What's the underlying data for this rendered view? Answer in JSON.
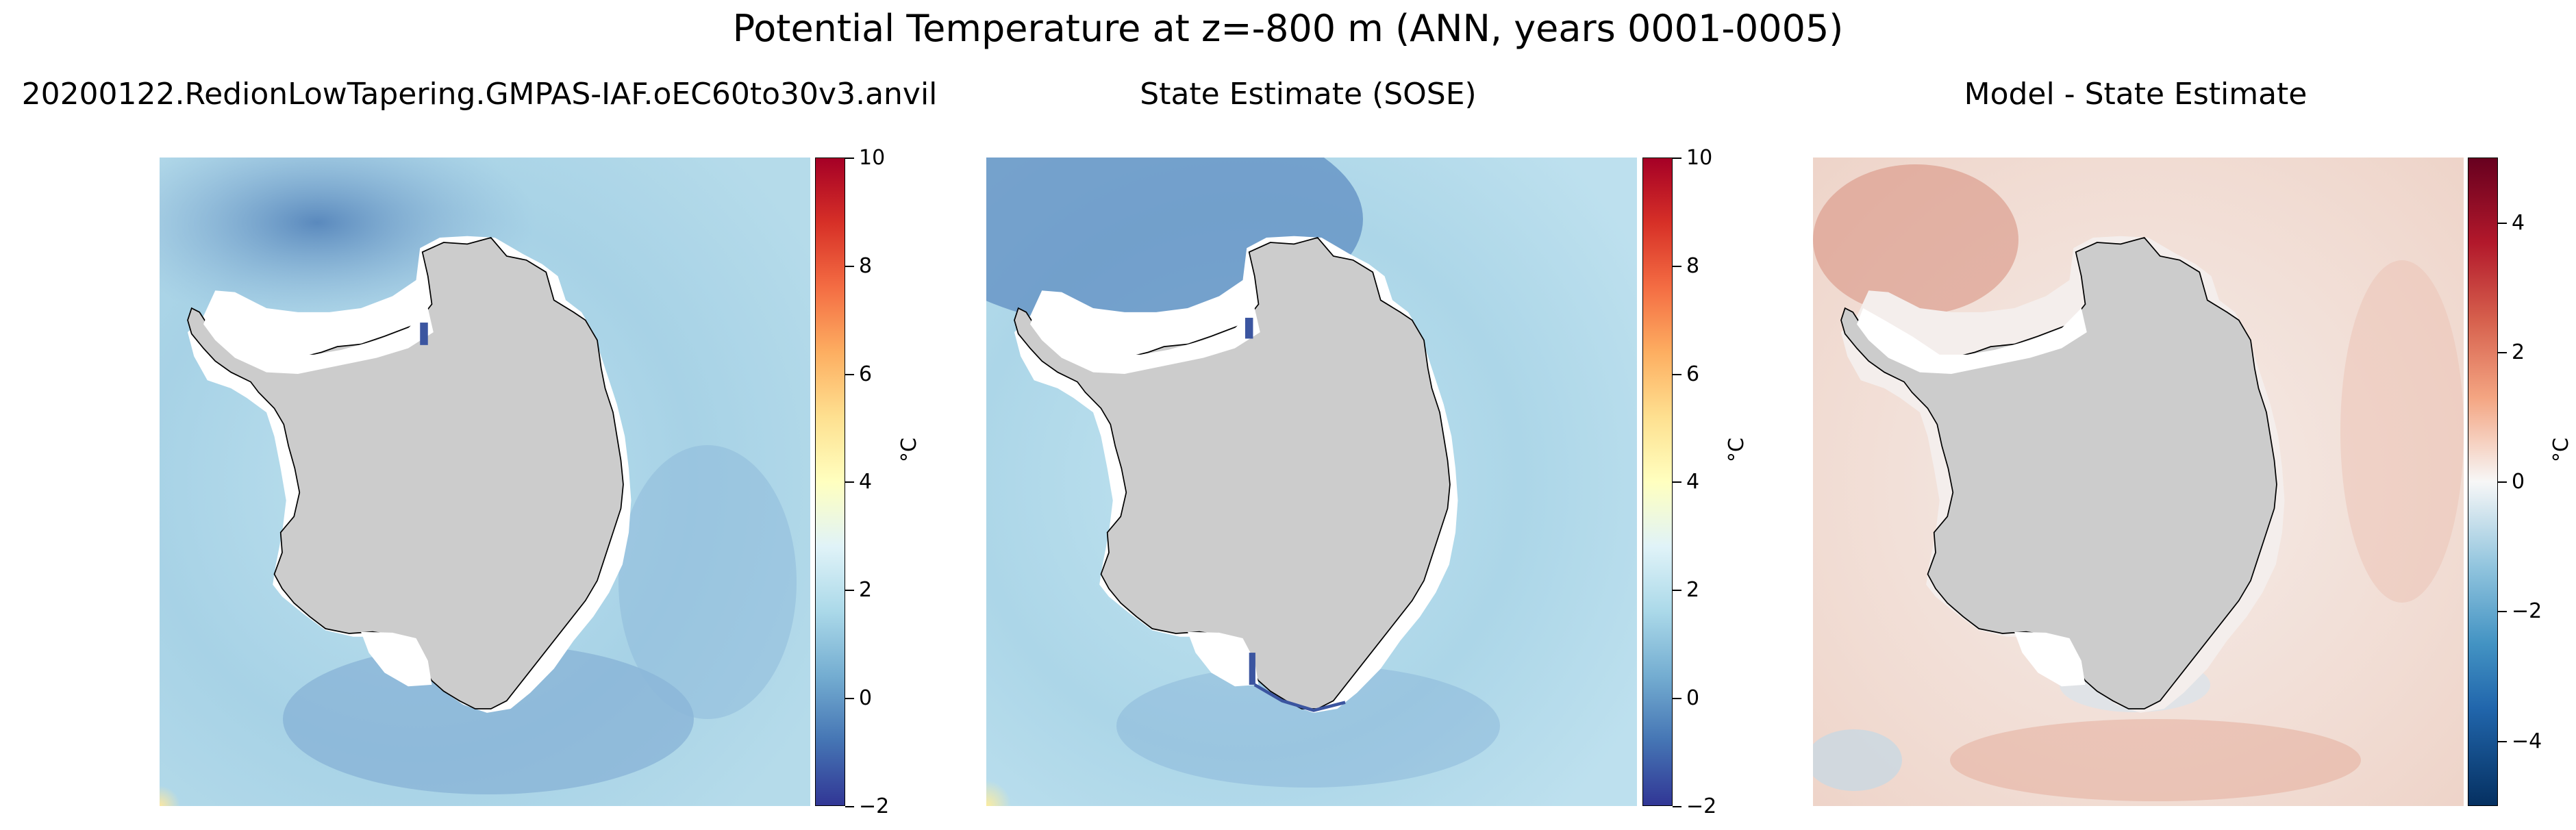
{
  "chart_data": [
    {
      "type": "heatmap",
      "suptitle": "Potential Temperature at z=-800 m (ANN, years 0001-0005)",
      "title": "20200122.RedionLowTapering.GMPAS-IAF.oEC60to30v3.anvil",
      "field": "model potential temperature, Southern Ocean polar stereographic",
      "colormap": "RdYlBu_r",
      "colorbar": {
        "label": "°C",
        "range": [
          -2,
          10
        ],
        "ticks": [
          "−2",
          "0",
          "2",
          "4",
          "6",
          "8",
          "10"
        ]
      }
    },
    {
      "type": "heatmap",
      "title": "State Estimate (SOSE)",
      "field": "SOSE potential temperature, Southern Ocean polar stereographic",
      "colormap": "RdYlBu_r",
      "colorbar": {
        "label": "°C",
        "range": [
          -2,
          10
        ],
        "ticks": [
          "−2",
          "0",
          "2",
          "4",
          "6",
          "8",
          "10"
        ]
      }
    },
    {
      "type": "heatmap",
      "title": "Model - State Estimate",
      "field": "temperature bias (model minus SOSE)",
      "colormap": "RdBu_r",
      "colorbar": {
        "label": "°C",
        "range": [
          -5,
          5
        ],
        "ticks": [
          "−4",
          "−2",
          "0",
          "2",
          "4"
        ]
      }
    }
  ],
  "colors": {
    "land": "#cccccc",
    "missing": "#ffffff",
    "coast": "#000000"
  }
}
